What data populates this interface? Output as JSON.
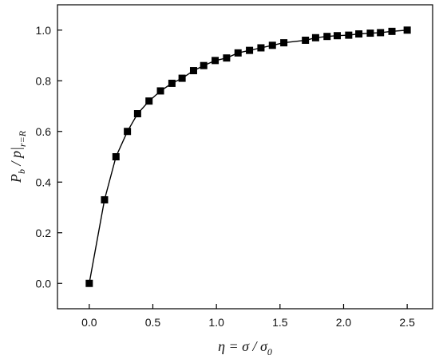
{
  "chart_data": {
    "type": "line",
    "title": "",
    "xlabel": {
      "main": "η = σ / σ",
      "subscript": "0"
    },
    "ylabel": {
      "part1": "P",
      "part1_sub": "b",
      "part2": " / p|",
      "part2_sub": "r=R"
    },
    "xlim": [
      -0.25,
      2.7
    ],
    "ylim": [
      -0.1,
      1.1
    ],
    "xticks": [
      0.0,
      0.5,
      1.0,
      1.5,
      2.0,
      2.5
    ],
    "yticks": [
      0.0,
      0.2,
      0.4,
      0.6,
      0.8,
      1.0
    ],
    "xtick_labels": [
      "0.0",
      "0.5",
      "1.0",
      "1.5",
      "2.0",
      "2.5"
    ],
    "ytick_labels": [
      "0.0",
      "0.2",
      "0.4",
      "0.6",
      "0.8",
      "1.0"
    ],
    "grid": false,
    "marker": "square",
    "color": "#000000",
    "series": [
      {
        "x": [
          0.0,
          0.12,
          0.21,
          0.3,
          0.38,
          0.47,
          0.56,
          0.65,
          0.73,
          0.82,
          0.9,
          0.99,
          1.08,
          1.17,
          1.26,
          1.35,
          1.44,
          1.53,
          1.7,
          1.78,
          1.87,
          1.95,
          2.04,
          2.12,
          2.21,
          2.29,
          2.38,
          2.5
        ],
        "y": [
          0.0,
          0.33,
          0.5,
          0.6,
          0.67,
          0.72,
          0.76,
          0.79,
          0.81,
          0.84,
          0.86,
          0.88,
          0.89,
          0.91,
          0.92,
          0.93,
          0.94,
          0.95,
          0.96,
          0.97,
          0.975,
          0.978,
          0.98,
          0.985,
          0.988,
          0.99,
          0.995,
          1.0
        ]
      }
    ]
  }
}
